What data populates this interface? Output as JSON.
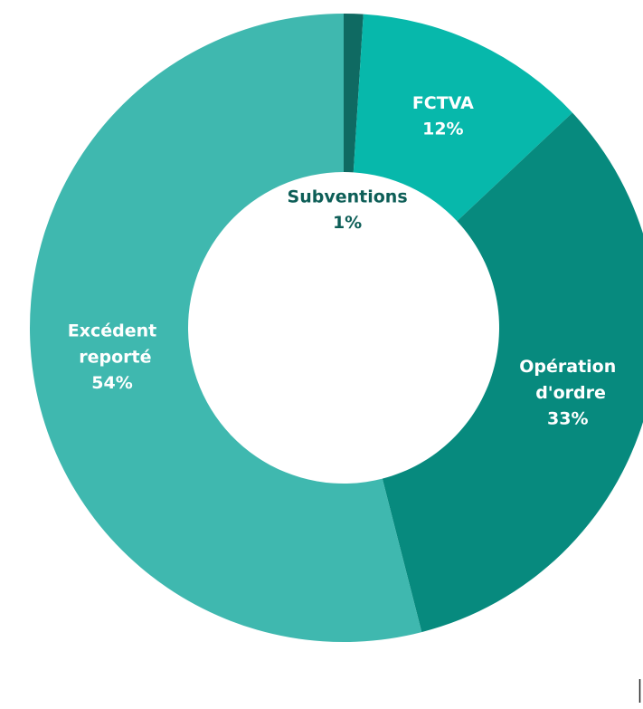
{
  "chart_data": {
    "type": "donut",
    "categories": [
      "Subventions",
      "FCTVA",
      "Opération d'ordre",
      "Excédent reporté"
    ],
    "values": [
      1,
      12,
      33,
      54
    ],
    "value_labels": [
      "1%",
      "12%",
      "33%",
      "54%"
    ],
    "colors": [
      "#0f6a62",
      "#07b8ab",
      "#078a7e",
      "#3fb8af"
    ]
  }
}
